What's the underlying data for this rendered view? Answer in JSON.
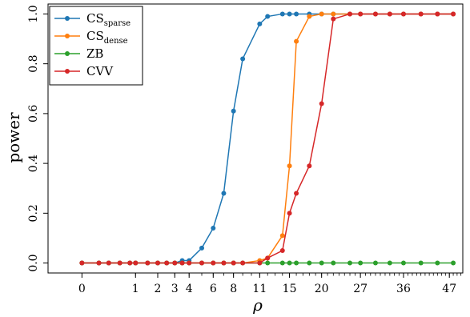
{
  "chart_data": {
    "type": "line",
    "xlabel": "ρ",
    "ylabel": "power",
    "x_scale": "sqrt",
    "xlim": [
      -0.4,
      50.5
    ],
    "ylim": [
      -0.04,
      1.04
    ],
    "xticks": [
      {
        "value": 0,
        "label": "0"
      },
      {
        "value": 1,
        "label": "1"
      },
      {
        "value": 2,
        "label": "2"
      },
      {
        "value": 3,
        "label": "3"
      },
      {
        "value": 4,
        "label": "4"
      },
      {
        "value": 6,
        "label": "6"
      },
      {
        "value": 8,
        "label": "8"
      },
      {
        "value": 11,
        "label": "11"
      },
      {
        "value": 15,
        "label": "15"
      },
      {
        "value": 20,
        "label": "20"
      },
      {
        "value": 27,
        "label": "27"
      },
      {
        "value": 36,
        "label": "36"
      },
      {
        "value": 47,
        "label": "47"
      }
    ],
    "yticks": [
      {
        "value": 0.0,
        "label": "0.0"
      },
      {
        "value": 0.2,
        "label": "0.2"
      },
      {
        "value": 0.4,
        "label": "0.4"
      },
      {
        "value": 0.6,
        "label": "0.6"
      },
      {
        "value": 0.8,
        "label": "0.8"
      },
      {
        "value": 1.0,
        "label": "1.0"
      }
    ],
    "x": [
      0,
      0.1,
      0.25,
      0.5,
      0.8,
      1,
      1.5,
      2,
      2.5,
      3,
      3.5,
      4,
      5,
      6,
      7,
      8,
      9,
      11,
      12,
      14,
      15,
      16,
      18,
      20,
      22,
      25,
      27,
      30,
      33,
      36,
      40,
      44,
      48
    ],
    "series": [
      {
        "name": "CSsparse",
        "name_main": "CS",
        "name_sub": "sparse",
        "color": "#1f77b4",
        "values": [
          0,
          0,
          0,
          0,
          0,
          0,
          0,
          0,
          0,
          0,
          0.01,
          0.01,
          0.06,
          0.14,
          0.28,
          0.61,
          0.82,
          0.96,
          0.99,
          1,
          1,
          1,
          1,
          1,
          1,
          1,
          1,
          1,
          1,
          1,
          1,
          1,
          1
        ]
      },
      {
        "name": "CSdense",
        "name_main": "CS",
        "name_sub": "dense",
        "color": "#ff7f0e",
        "values": [
          0,
          0,
          0,
          0,
          0,
          0,
          0,
          0,
          0,
          0,
          0,
          0,
          0,
          0,
          0,
          0,
          0,
          0.01,
          0.02,
          0.11,
          0.39,
          0.89,
          0.99,
          1,
          1,
          1,
          1,
          1,
          1,
          1,
          1,
          1,
          1
        ]
      },
      {
        "name": "ZB",
        "name_main": "ZB",
        "name_sub": "",
        "color": "#2ca02c",
        "values": [
          0,
          0,
          0,
          0,
          0,
          0,
          0,
          0,
          0,
          0,
          0,
          0,
          0,
          0,
          0,
          0,
          0,
          0,
          0,
          0,
          0,
          0,
          0,
          0,
          0,
          0,
          0,
          0,
          0,
          0,
          0,
          0,
          0
        ]
      },
      {
        "name": "CVV",
        "name_main": "CVV",
        "name_sub": "",
        "color": "#d62728",
        "values": [
          0,
          0,
          0,
          0,
          0,
          0,
          0,
          0,
          0,
          0,
          0,
          0,
          0,
          0,
          0,
          0,
          0,
          0,
          0.02,
          0.05,
          0.2,
          0.28,
          0.39,
          0.64,
          0.98,
          1,
          1,
          1,
          1,
          1,
          1,
          1,
          1
        ]
      }
    ],
    "grid": false,
    "legend_position": "top-left"
  }
}
